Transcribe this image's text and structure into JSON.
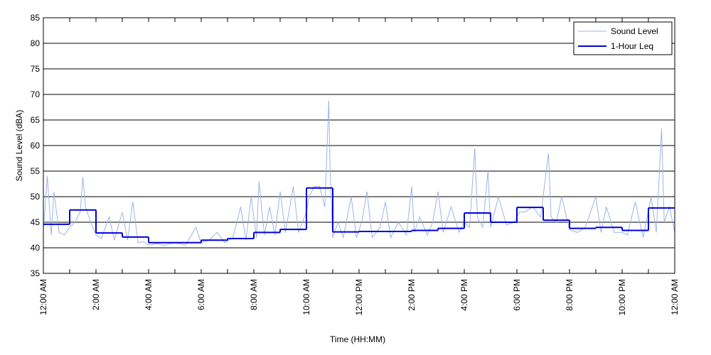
{
  "chart_data": {
    "type": "line",
    "xlabel": "Time (HH:MM)",
    "ylabel": "Sound Level (dBA)",
    "xlim": [
      0,
      24
    ],
    "ylim": [
      35,
      85
    ],
    "xticks": [
      {
        "value": 0,
        "label": "12:00 AM"
      },
      {
        "value": 2,
        "label": "2:00 AM"
      },
      {
        "value": 4,
        "label": "4:00 AM"
      },
      {
        "value": 6,
        "label": "6:00 AM"
      },
      {
        "value": 8,
        "label": "8:00 AM"
      },
      {
        "value": 10,
        "label": "10:00 AM"
      },
      {
        "value": 12,
        "label": "12:00 PM"
      },
      {
        "value": 14,
        "label": "2:00 PM"
      },
      {
        "value": 16,
        "label": "4:00 PM"
      },
      {
        "value": 18,
        "label": "6:00 PM"
      },
      {
        "value": 20,
        "label": "8:00 PM"
      },
      {
        "value": 22,
        "label": "10:00 PM"
      },
      {
        "value": 24,
        "label": "12:00 AM"
      }
    ],
    "xminorticks": [
      1,
      3,
      5,
      7,
      9,
      11,
      13,
      15,
      17,
      19,
      21,
      23
    ],
    "yticks": [
      35,
      40,
      45,
      50,
      55,
      60,
      65,
      70,
      75,
      80,
      85
    ],
    "grid": true,
    "legend": "upper right",
    "series": [
      {
        "name": "Sound Level",
        "color": "#9db3e8",
        "style": "line",
        "x": [
          0,
          0.15,
          0.3,
          0.4,
          0.6,
          0.8,
          1.0,
          1.2,
          1.4,
          1.5,
          1.6,
          1.8,
          2.0,
          2.2,
          2.5,
          2.7,
          3.0,
          3.2,
          3.4,
          3.6,
          3.8,
          4.0,
          4.3,
          4.6,
          5.0,
          5.4,
          5.8,
          6.0,
          6.3,
          6.6,
          6.9,
          7.2,
          7.5,
          7.7,
          7.9,
          8.1,
          8.2,
          8.4,
          8.6,
          8.8,
          9.0,
          9.2,
          9.5,
          9.7,
          10.0,
          10.1,
          10.3,
          10.5,
          10.7,
          10.85,
          10.9,
          11.0,
          11.2,
          11.4,
          11.7,
          11.9,
          12.1,
          12.3,
          12.5,
          12.8,
          13.0,
          13.2,
          13.5,
          13.8,
          14.0,
          14.1,
          14.3,
          14.6,
          14.8,
          15.0,
          15.2,
          15.5,
          15.8,
          16.0,
          16.2,
          16.4,
          16.5,
          16.7,
          16.9,
          17.0,
          17.3,
          17.6,
          17.9,
          18.1,
          18.3,
          18.6,
          18.9,
          19.2,
          19.3,
          19.5,
          19.7,
          20.0,
          20.3,
          20.6,
          21.0,
          21.2,
          21.4,
          21.7,
          22.0,
          22.2,
          22.5,
          22.8,
          23.1,
          23.3,
          23.5,
          23.6,
          23.8,
          24.0
        ],
        "values": [
          43.5,
          54,
          42.5,
          51,
          43,
          42.5,
          44,
          45,
          47,
          53.8,
          48,
          45,
          42.5,
          41.8,
          46,
          41.5,
          47,
          41.5,
          49,
          41,
          41.2,
          40.5,
          40.8,
          40.5,
          41,
          40.5,
          44,
          41,
          41.5,
          43,
          41,
          42,
          48,
          41.5,
          50,
          42,
          53,
          42.5,
          48,
          42.5,
          51,
          43,
          52,
          43,
          47,
          50,
          52,
          52,
          48,
          68.8,
          55,
          42,
          45,
          42,
          50,
          42,
          45,
          51,
          42,
          44,
          49,
          42,
          45,
          42.5,
          52,
          43,
          46,
          42.5,
          45,
          51,
          43,
          48,
          43,
          45,
          44,
          59.5,
          46,
          44,
          55,
          44,
          50,
          44.5,
          45,
          47,
          47,
          48,
          46,
          58.5,
          46,
          45,
          50,
          43.5,
          43,
          44,
          50,
          43,
          48,
          43,
          43,
          42.5,
          49,
          42,
          50,
          43,
          63.3,
          45,
          48,
          43
        ]
      },
      {
        "name": "1-Hour Leq",
        "color": "#0000dd",
        "style": "step",
        "x": [
          0,
          1,
          2,
          3,
          4,
          5,
          6,
          7,
          8,
          9,
          10,
          11,
          12,
          13,
          14,
          15,
          16,
          17,
          18,
          19,
          20,
          21,
          22,
          23
        ],
        "values": [
          44.6,
          47.4,
          42.9,
          42.1,
          41.0,
          41.0,
          41.5,
          41.8,
          43.0,
          43.6,
          51.7,
          43.1,
          43.2,
          43.2,
          43.4,
          43.8,
          46.8,
          45.0,
          47.9,
          45.4,
          43.8,
          44.0,
          43.4,
          47.8
        ]
      }
    ]
  }
}
